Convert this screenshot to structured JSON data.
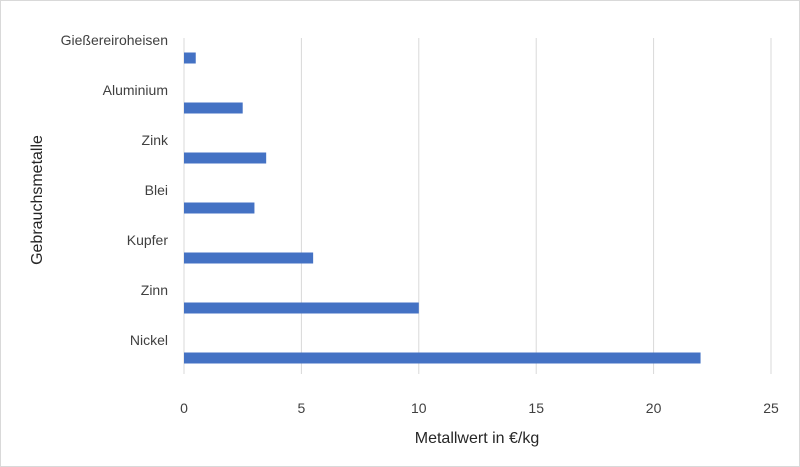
{
  "chart_data": {
    "type": "bar",
    "orientation": "horizontal",
    "categories": [
      "Gießereiroheisen",
      "Aluminium",
      "Zink",
      "Blei",
      "Kupfer",
      "Zinn",
      "Nickel"
    ],
    "values": [
      0.5,
      2.5,
      3.5,
      3,
      5.5,
      10,
      22
    ],
    "xlabel": "Metallwert in €/kg",
    "ylabel": "Gebrauchsmetalle",
    "xlim": [
      0,
      25
    ],
    "xticks": [
      "0",
      "5",
      "10",
      "15",
      "20",
      "25"
    ],
    "grid": "vertical",
    "bar_color": "#4472C4",
    "grid_color": "#d9d9d9"
  }
}
